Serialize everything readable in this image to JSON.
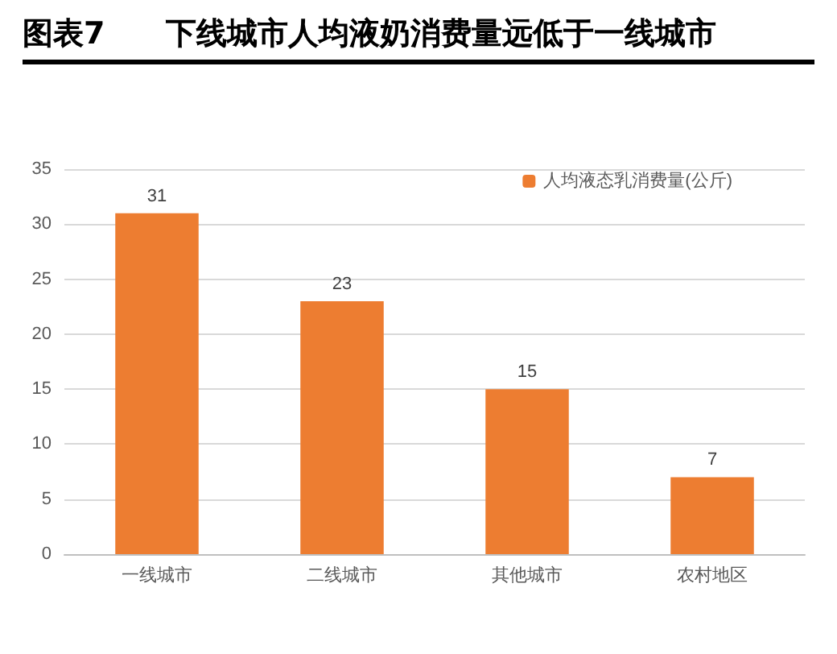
{
  "chart_data": {
    "type": "bar",
    "title": "图表7　　下线城市人均液奶消费量远低于一线城市",
    "categories": [
      "一线城市",
      "二线城市",
      "其他城市",
      "农村地区"
    ],
    "series": [
      {
        "name": "人均液态乳消费量(公斤)",
        "color": "#ed7d31",
        "values": [
          31,
          23,
          15,
          7
        ]
      }
    ],
    "ylim": [
      0,
      35
    ],
    "yticks": [
      0,
      5,
      10,
      15,
      20,
      25,
      30,
      35
    ],
    "grid": "y",
    "legend": "top right",
    "data_labels": true
  }
}
